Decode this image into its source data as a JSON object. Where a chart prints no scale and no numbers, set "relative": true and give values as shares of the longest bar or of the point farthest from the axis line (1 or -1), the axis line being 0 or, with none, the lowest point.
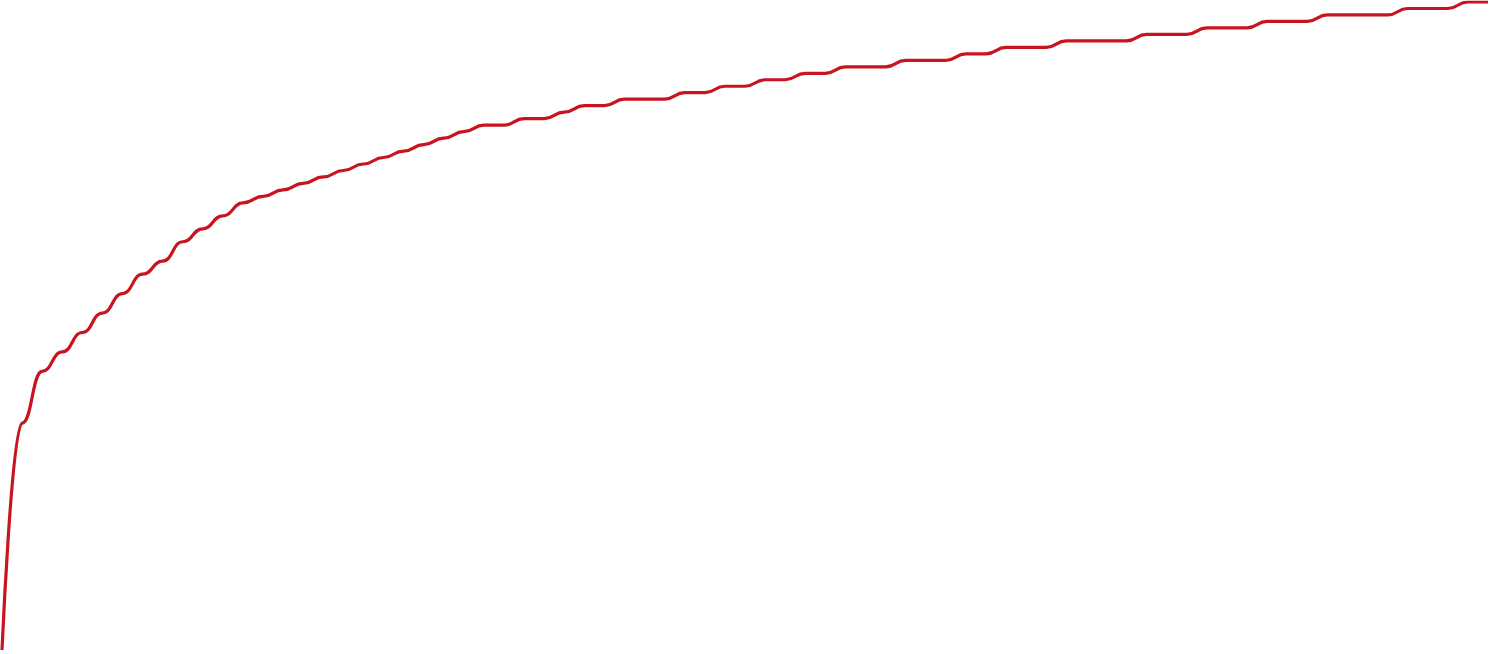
{
  "chart_data": {
    "type": "line",
    "relative": true,
    "marker": "none",
    "categories": [
      null,
      null,
      null,
      null,
      null,
      null,
      null,
      null,
      null,
      null,
      null,
      null,
      null,
      null,
      null,
      null,
      null,
      null,
      null,
      null,
      null,
      null,
      null,
      null,
      null,
      null,
      null,
      null,
      null,
      null,
      null,
      null,
      null,
      null,
      null,
      null,
      null,
      null,
      null,
      null,
      null,
      null,
      null,
      null,
      null,
      null,
      null,
      null,
      null,
      null,
      null,
      null,
      null,
      null,
      null,
      null,
      null,
      null,
      null,
      null,
      null,
      null,
      null,
      null,
      null,
      null,
      null,
      null,
      null,
      null,
      null,
      null,
      null,
      null,
      null
    ],
    "series": [
      {
        "color": "#c8141e",
        "values": [
          0,
          0.35,
          0.43,
          0.46,
          0.49,
          0.52,
          0.55,
          0.58,
          0.6,
          0.63,
          0.65,
          0.67,
          0.69,
          0.7,
          0.71,
          0.72,
          0.73,
          0.74,
          0.75,
          0.76,
          0.77,
          0.78,
          0.79,
          0.8,
          0.81,
          0.81,
          0.82,
          0.82,
          0.83,
          0.84,
          0.84,
          0.85,
          0.85,
          0.85,
          0.86,
          0.86,
          0.87,
          0.87,
          0.88,
          0.88,
          0.89,
          0.89,
          0.9,
          0.9,
          0.9,
          0.91,
          0.91,
          0.91,
          0.92,
          0.92,
          0.93,
          0.93,
          0.93,
          0.94,
          0.94,
          0.94,
          0.94,
          0.95,
          0.95,
          0.95,
          0.96,
          0.96,
          0.96,
          0.97,
          0.97,
          0.97,
          0.98,
          0.98,
          0.98,
          0.98,
          0.99,
          0.99,
          0.99,
          1.0,
          1.0
        ]
      }
    ]
  }
}
